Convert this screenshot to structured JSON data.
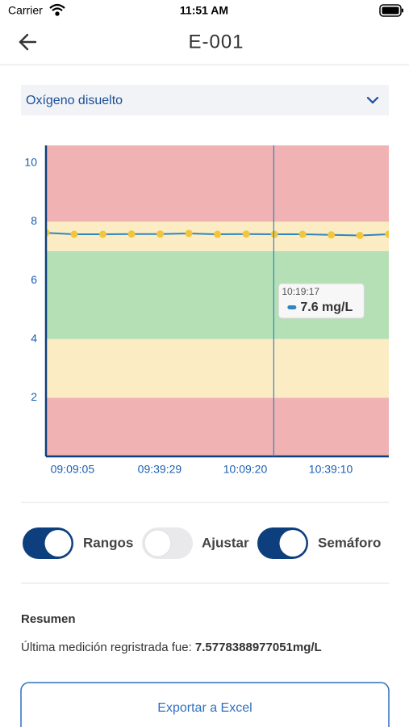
{
  "status_bar": {
    "carrier": "Carrier",
    "time": "11:51 AM"
  },
  "header": {
    "title": "E-001"
  },
  "selector": {
    "label": "Oxígeno disuelto"
  },
  "chart_data": {
    "type": "line",
    "x": [
      32390,
      32980,
      33580,
      34180,
      34780,
      35380,
      35980,
      36580,
      37170,
      37760,
      38360,
      38960,
      39560
    ],
    "series": [
      {
        "color": "#2e86c1",
        "marker_color": "#f3c53c",
        "values": [
          7.62,
          7.57,
          7.57,
          7.58,
          7.58,
          7.6,
          7.57,
          7.58,
          7.57,
          7.57,
          7.55,
          7.53,
          7.57
        ]
      }
    ],
    "xlim": [
      32390,
      39565
    ],
    "xticks": [
      {
        "value": 32945,
        "label": "09:09:05"
      },
      {
        "value": 34769,
        "label": "09:39:29"
      },
      {
        "value": 36560,
        "label": "10:09:20"
      },
      {
        "value": 38350,
        "label": "10:39:10"
      }
    ],
    "ylim": [
      0,
      10.6
    ],
    "yticks": [
      2,
      4,
      6,
      8,
      10
    ],
    "bands": [
      {
        "from": 0,
        "to": 2,
        "color": "#f0b2b2"
      },
      {
        "from": 2,
        "to": 4,
        "color": "#fbecc4"
      },
      {
        "from": 4,
        "to": 7,
        "color": "#b5e0b5"
      },
      {
        "from": 7,
        "to": 8,
        "color": "#fbecc4"
      },
      {
        "from": 8,
        "to": 10.6,
        "color": "#f0b2b2"
      }
    ],
    "crosshair": {
      "x": 37157,
      "time": "10:19:17",
      "label": "7.6 mg/L"
    }
  },
  "toggles": [
    {
      "label": "Rangos",
      "on": true
    },
    {
      "label": "Ajustar",
      "on": false
    },
    {
      "label": "Semáforo",
      "on": true
    }
  ],
  "summary": {
    "title": "Resumen",
    "text": "Última medición regristrada fue: ",
    "value": "7.5778388977051mg/L"
  },
  "button": {
    "label": "Exportar a Excel"
  }
}
